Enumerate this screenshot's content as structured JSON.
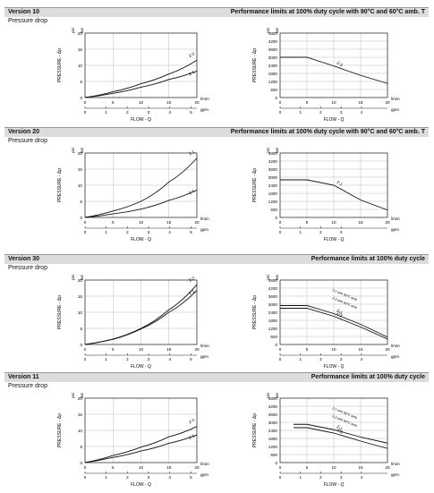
{
  "sections": [
    {
      "version": "Version 10",
      "perf_title": "Performance limits at 100% duty cycle with 90°C and 60°C amb. T",
      "pressure_drop_label": "Pressure drop",
      "left_chart": {
        "units": [
          "psi",
          "bar"
        ],
        "ylabel": "PRESSURE - Δp",
        "yticks": [
          0,
          5,
          10,
          15,
          20
        ],
        "xticks_lpm": [
          0,
          5,
          10,
          15,
          20
        ],
        "xticks_gpm": [
          0,
          1,
          2,
          3,
          4,
          5
        ],
        "xunit_lpm": "l/min",
        "xunit_gpm": "gpm",
        "xlabel": "FLOW - Q",
        "curves": [
          {
            "name": "2-3",
            "points": [
              [
                0,
                0
              ],
              [
                5,
                1.8
              ],
              [
                10,
                4.3
              ],
              [
                15,
                7.3
              ],
              [
                20,
                11.6
              ]
            ]
          },
          {
            "name": "2-1",
            "points": [
              [
                0,
                0
              ],
              [
                5,
                1.3
              ],
              [
                10,
                3.2
              ],
              [
                15,
                5.6
              ],
              [
                20,
                8.2
              ]
            ]
          }
        ]
      },
      "right_chart": {
        "units": [
          "psi",
          "bar"
        ],
        "ylabel": "PRESSURE - Δp",
        "yticks": [
          0,
          600,
          1200,
          1800,
          2400,
          3000,
          3600,
          4200,
          4800
        ],
        "xticks_lpm": [
          0,
          5,
          10,
          15,
          20
        ],
        "xticks_gpm": [
          0,
          1,
          2,
          3,
          4
        ],
        "xunit_lpm": "l/min",
        "xunit_gpm": "gpm",
        "xlabel": "FLOW - Q",
        "curves": [
          {
            "name": "2-3",
            "points": [
              [
                0,
                3000
              ],
              [
                5,
                3000
              ],
              [
                10,
                2350
              ],
              [
                15,
                1650
              ],
              [
                20,
                1050
              ]
            ]
          }
        ]
      }
    },
    {
      "version": "Version 20",
      "perf_title": "Performance limits at 100% duty cycle with 90°C and 60°C amb. T",
      "pressure_drop_label": "Pressure drop",
      "left_chart": {
        "units": [
          "psi",
          "bar"
        ],
        "ylabel": "PRESSURE - Δp",
        "yticks": [
          0,
          5,
          10,
          15,
          20
        ],
        "xticks_lpm": [
          0,
          5,
          10,
          15,
          20
        ],
        "xticks_gpm": [
          0,
          1,
          2,
          3,
          4,
          5
        ],
        "xunit_lpm": "l/min",
        "xunit_gpm": "gpm",
        "xlabel": "FLOW - Q",
        "curves": [
          {
            "name": "2-1",
            "points": [
              [
                0,
                0
              ],
              [
                5,
                2.0
              ],
              [
                10,
                5.0
              ],
              [
                15,
                11.0
              ],
              [
                20,
                18.4
              ]
            ]
          },
          {
            "name": "2-1",
            "points": [
              [
                0,
                0
              ],
              [
                5,
                1.1
              ],
              [
                10,
                2.6
              ],
              [
                15,
                5.3
              ],
              [
                20,
                8.5
              ]
            ]
          }
        ]
      },
      "right_chart": {
        "units": [
          "psi",
          "bar"
        ],
        "ylabel": "PRESSURE - Δp",
        "yticks": [
          0,
          600,
          1200,
          1800,
          2400,
          3000,
          3600,
          4200,
          4800
        ],
        "xticks_lpm": [
          0,
          5,
          10,
          15,
          20
        ],
        "xticks_gpm": [
          0,
          1,
          2,
          3
        ],
        "xunit_lpm": "l/min",
        "xunit_gpm": "gpm",
        "xlabel": "FLOW - Q",
        "curves": [
          {
            "name": "2-1",
            "points": [
              [
                0,
                2800
              ],
              [
                5,
                2800
              ],
              [
                10,
                2400
              ],
              [
                15,
                1300
              ],
              [
                20,
                550
              ]
            ]
          }
        ]
      }
    },
    {
      "version": "Version 30",
      "perf_title": "Performance limits at 100% duty cycle",
      "pressure_drop_label": "Pressure drop",
      "left_chart": {
        "units": [
          "psi",
          "bar"
        ],
        "ylabel": "PRESSURE - Δp",
        "yticks": [
          0,
          5,
          10,
          15,
          20
        ],
        "xticks_lpm": [
          0,
          5,
          10,
          15,
          20
        ],
        "xticks_gpm": [
          0,
          1,
          2,
          3,
          4,
          5
        ],
        "xunit_lpm": "l/min",
        "xunit_gpm": "gpm",
        "xlabel": "FLOW - Q",
        "curves": [
          {
            "name": "2-3",
            "points": [
              [
                0,
                0
              ],
              [
                5,
                1.7
              ],
              [
                10,
                5.0
              ],
              [
                15,
                10.8
              ],
              [
                20,
                18.6
              ]
            ]
          },
          {
            "name": "2-1",
            "points": [
              [
                0,
                0
              ],
              [
                5,
                1.6
              ],
              [
                10,
                4.8
              ],
              [
                15,
                10.0
              ],
              [
                20,
                16.8
              ]
            ]
          }
        ]
      },
      "right_chart": {
        "units": [
          "psi",
          "bar"
        ],
        "ylabel": "PRESSURE - Δp",
        "yticks": [
          0,
          600,
          1200,
          1800,
          2400,
          3000,
          3600,
          4200,
          4800
        ],
        "xticks_lpm": [
          0,
          5,
          10,
          15,
          20
        ],
        "xticks_gpm": [
          0,
          1,
          2,
          3,
          4
        ],
        "xunit_lpm": "l/min",
        "xunit_gpm": "gpm",
        "xlabel": "FLOW - Q",
        "curve_labels": [
          "2-1 with 90°C amb",
          "2-3 with 60°C amb"
        ],
        "curves": [
          {
            "name": "2-1",
            "points": [
              [
                0,
                2900
              ],
              [
                5,
                2900
              ],
              [
                10,
                2300
              ],
              [
                15,
                1500
              ],
              [
                20,
                550
              ]
            ]
          },
          {
            "name": "2-3",
            "points": [
              [
                0,
                2700
              ],
              [
                5,
                2700
              ],
              [
                10,
                2100
              ],
              [
                15,
                1300
              ],
              [
                20,
                400
              ]
            ]
          }
        ]
      }
    },
    {
      "version": "Version 11",
      "perf_title": "Performance limits at 100% duty cycle",
      "pressure_drop_label": "Pressure drop",
      "left_chart": {
        "units": [
          "psi",
          "bar"
        ],
        "ylabel": "PRESSURE - Δp",
        "yticks": [
          0,
          5,
          10,
          15,
          20
        ],
        "xticks_lpm": [
          0,
          5,
          10,
          15,
          20
        ],
        "xticks_gpm": [
          0,
          1,
          2,
          3,
          4,
          5
        ],
        "xunit_lpm": "l/min",
        "xunit_gpm": "gpm",
        "xlabel": "FLOW - Q",
        "curves": [
          {
            "name": "2-3",
            "points": [
              [
                0,
                0
              ],
              [
                5,
                2.2
              ],
              [
                10,
                4.8
              ],
              [
                15,
                8.0
              ],
              [
                20,
                11.2
              ]
            ]
          },
          {
            "name": "2-1",
            "points": [
              [
                0,
                0
              ],
              [
                5,
                1.6
              ],
              [
                10,
                3.6
              ],
              [
                15,
                6.0
              ],
              [
                20,
                8.6
              ]
            ]
          }
        ]
      },
      "right_chart": {
        "units": [
          "psi",
          "bar"
        ],
        "ylabel": "PRESSURE - Δp",
        "yticks": [
          0,
          600,
          1200,
          1800,
          2400,
          3000,
          3600,
          4200,
          4800
        ],
        "xticks_lpm": [
          0,
          5,
          10,
          15,
          20
        ],
        "xticks_gpm": [
          0,
          1,
          2,
          3,
          4
        ],
        "xunit_lpm": "l/min",
        "xunit_gpm": "gpm",
        "xlabel": "FLOW - Q",
        "curve_labels": [
          "2-1 with 90°C amb",
          "2-3 with 60°C amb"
        ],
        "curves": [
          {
            "name": "2-1",
            "points": [
              [
                2.5,
                2850
              ],
              [
                5,
                2850
              ],
              [
                10,
                2450
              ],
              [
                15,
                1900
              ],
              [
                20,
                1450
              ]
            ]
          },
          {
            "name": "2-3",
            "points": [
              [
                2.5,
                2600
              ],
              [
                5,
                2600
              ],
              [
                10,
                2200
              ],
              [
                15,
                1600
              ],
              [
                20,
                1050
              ]
            ]
          }
        ]
      }
    }
  ],
  "chart_data": [
    {
      "type": "line",
      "title": "",
      "xlabel": "FLOW - Q",
      "ylabel": "PRESSURE - Δp",
      "xunit": "l/min",
      "yunit": "bar",
      "ylim": [
        0,
        20
      ],
      "xlim": [
        0,
        20
      ],
      "series": [
        {
          "name": "2-3",
          "x": [
            0,
            5,
            10,
            15,
            20
          ],
          "values": [
            0,
            1.8,
            4.3,
            7.3,
            11.6
          ]
        },
        {
          "name": "2-1",
          "x": [
            0,
            5,
            10,
            15,
            20
          ],
          "values": [
            0,
            1.3,
            3.2,
            5.6,
            8.2
          ]
        }
      ]
    },
    {
      "type": "line",
      "title": "",
      "xlabel": "FLOW - Q",
      "ylabel": "PRESSURE - Δp",
      "xunit": "l/min",
      "yunit": "psi",
      "ylim": [
        0,
        4800
      ],
      "xlim": [
        0,
        20
      ],
      "series": [
        {
          "name": "2-3",
          "x": [
            0,
            5,
            10,
            15,
            20
          ],
          "values": [
            3000,
            3000,
            2350,
            1650,
            1050
          ]
        }
      ]
    },
    {
      "type": "line",
      "title": "",
      "xlabel": "FLOW - Q",
      "ylabel": "PRESSURE - Δp",
      "xunit": "l/min",
      "yunit": "bar",
      "ylim": [
        0,
        20
      ],
      "xlim": [
        0,
        20
      ],
      "series": [
        {
          "name": "2-1",
          "x": [
            0,
            5,
            10,
            15,
            20
          ],
          "values": [
            0,
            2.0,
            5.0,
            11.0,
            18.4
          ]
        },
        {
          "name": "2-1",
          "x": [
            0,
            5,
            10,
            15,
            20
          ],
          "values": [
            0,
            1.1,
            2.6,
            5.3,
            8.5
          ]
        }
      ]
    },
    {
      "type": "line",
      "title": "",
      "xlabel": "FLOW - Q",
      "ylabel": "PRESSURE - Δp",
      "xunit": "l/min",
      "yunit": "psi",
      "ylim": [
        0,
        4800
      ],
      "xlim": [
        0,
        20
      ],
      "series": [
        {
          "name": "2-1",
          "x": [
            0,
            5,
            10,
            15,
            20
          ],
          "values": [
            2800,
            2800,
            2400,
            1300,
            550
          ]
        }
      ]
    },
    {
      "type": "line",
      "title": "",
      "xlabel": "FLOW - Q",
      "ylabel": "PRESSURE - Δp",
      "xunit": "l/min",
      "yunit": "bar",
      "ylim": [
        0,
        20
      ],
      "xlim": [
        0,
        20
      ],
      "series": [
        {
          "name": "2-3",
          "x": [
            0,
            5,
            10,
            15,
            20
          ],
          "values": [
            0,
            1.7,
            5.0,
            10.8,
            18.6
          ]
        },
        {
          "name": "2-1",
          "x": [
            0,
            5,
            10,
            15,
            20
          ],
          "values": [
            0,
            1.6,
            4.8,
            10.0,
            16.8
          ]
        }
      ]
    },
    {
      "type": "line",
      "title": "",
      "xlabel": "FLOW - Q",
      "ylabel": "PRESSURE - Δp",
      "xunit": "l/min",
      "yunit": "psi",
      "ylim": [
        0,
        4800
      ],
      "xlim": [
        0,
        20
      ],
      "series": [
        {
          "name": "2-1",
          "x": [
            0,
            5,
            10,
            15,
            20
          ],
          "values": [
            2900,
            2900,
            2300,
            1500,
            550
          ]
        },
        {
          "name": "2-3",
          "x": [
            0,
            5,
            10,
            15,
            20
          ],
          "values": [
            2700,
            2700,
            2100,
            1300,
            400
          ]
        }
      ]
    },
    {
      "type": "line",
      "title": "",
      "xlabel": "FLOW - Q",
      "ylabel": "PRESSURE - Δp",
      "xunit": "l/min",
      "yunit": "bar",
      "ylim": [
        0,
        20
      ],
      "xlim": [
        0,
        20
      ],
      "series": [
        {
          "name": "2-3",
          "x": [
            0,
            5,
            10,
            15,
            20
          ],
          "values": [
            0,
            2.2,
            4.8,
            8.0,
            11.2
          ]
        },
        {
          "name": "2-1",
          "x": [
            0,
            5,
            10,
            15,
            20
          ],
          "values": [
            0,
            1.6,
            3.6,
            6.0,
            8.6
          ]
        }
      ]
    },
    {
      "type": "line",
      "title": "",
      "xlabel": "FLOW - Q",
      "ylabel": "PRESSURE - Δp",
      "xunit": "l/min",
      "yunit": "psi",
      "ylim": [
        0,
        4800
      ],
      "xlim": [
        0,
        20
      ],
      "series": [
        {
          "name": "2-1",
          "x": [
            2.5,
            5,
            10,
            15,
            20
          ],
          "values": [
            2850,
            2850,
            2450,
            1900,
            1450
          ]
        },
        {
          "name": "2-3",
          "x": [
            2.5,
            5,
            10,
            15,
            20
          ],
          "values": [
            2600,
            2600,
            2200,
            1600,
            1050
          ]
        }
      ]
    }
  ]
}
